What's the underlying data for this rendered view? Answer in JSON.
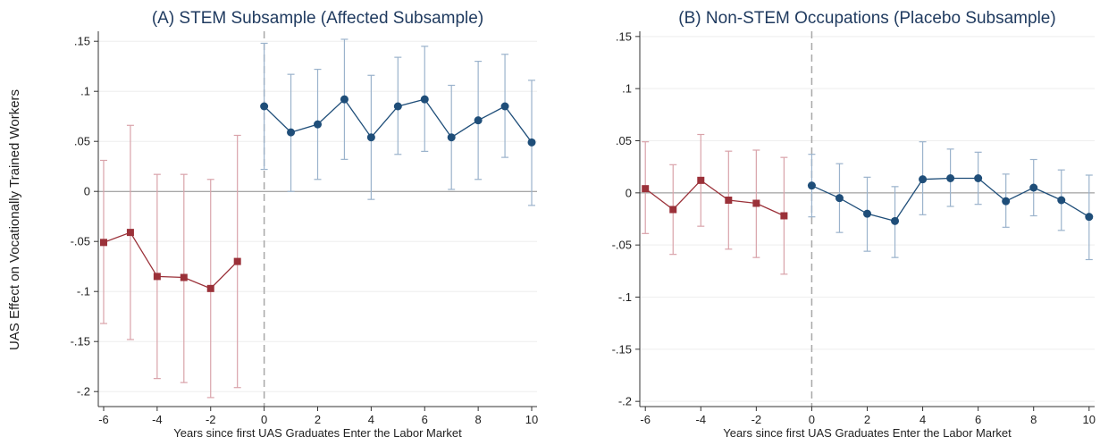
{
  "figure": {
    "ylabel": "UAS Effect on Vocationally Trained Workers"
  },
  "chart_data": [
    {
      "type": "scatter",
      "title": "(A) STEM Subsample (Affected Subsample)",
      "xlabel": "Years since first UAS Graduates Enter the Labor Market",
      "ylabel": "UAS Effect on Vocationally Trained Workers",
      "xlim": [
        -6.2,
        10.2
      ],
      "ylim": [
        -0.215,
        0.16
      ],
      "xticks": [
        -6,
        -4,
        -2,
        0,
        2,
        4,
        6,
        8,
        10
      ],
      "xtick_labels": [
        "-6",
        "-4",
        "-2",
        "0",
        "2",
        "4",
        "6",
        "8",
        "10"
      ],
      "yticks": [
        0.15,
        0.1,
        0.05,
        0,
        -0.05,
        -0.1,
        -0.15,
        -0.2
      ],
      "ytick_labels": [
        ".15",
        ".1",
        ".05",
        "0",
        "-.05",
        "-.1",
        "-.15",
        "-.2"
      ],
      "grid": true,
      "zero_line": true,
      "vline_x": 0,
      "series": [
        {
          "color": "#9B3139",
          "ci_color": "#D9A3AA",
          "marker": "square",
          "x": [
            -6,
            -5,
            -4,
            -3,
            -2,
            -1
          ],
          "y": [
            -0.051,
            -0.041,
            -0.085,
            -0.086,
            -0.097,
            -0.07
          ],
          "lo": [
            -0.132,
            -0.148,
            -0.187,
            -0.191,
            -0.206,
            -0.196
          ],
          "hi": [
            0.031,
            0.066,
            0.017,
            0.017,
            0.012,
            0.056
          ]
        },
        {
          "color": "#1F4E79",
          "ci_color": "#9BB3CC",
          "marker": "circle",
          "x": [
            0,
            1,
            2,
            3,
            4,
            5,
            6,
            7,
            8,
            9,
            10
          ],
          "y": [
            0.085,
            0.059,
            0.067,
            0.092,
            0.054,
            0.085,
            0.092,
            0.054,
            0.071,
            0.085,
            0.049
          ],
          "lo": [
            0.022,
            0.0,
            0.012,
            0.032,
            -0.008,
            0.037,
            0.04,
            0.002,
            0.012,
            0.034,
            -0.014
          ],
          "hi": [
            0.148,
            0.117,
            0.122,
            0.152,
            0.116,
            0.134,
            0.145,
            0.106,
            0.13,
            0.137,
            0.111
          ]
        }
      ]
    },
    {
      "type": "scatter",
      "title": "(B) Non-STEM Occupations (Placebo Subsample)",
      "xlabel": "Years since first UAS Graduates Enter the Labor Market",
      "ylabel": "",
      "xlim": [
        -6.2,
        10.2
      ],
      "ylim": [
        -0.205,
        0.155
      ],
      "xticks": [
        -6,
        -4,
        -2,
        0,
        2,
        4,
        6,
        8,
        10
      ],
      "xtick_labels": [
        "-6",
        "-4",
        "-2",
        "0",
        "2",
        "4",
        "6",
        "8",
        "10"
      ],
      "yticks": [
        0.15,
        0.1,
        0.05,
        0,
        -0.05,
        -0.1,
        -0.15,
        -0.2
      ],
      "ytick_labels": [
        ".15",
        ".1",
        ".05",
        "0",
        "-.05",
        "-.1",
        "-.15",
        "-.2"
      ],
      "grid": true,
      "zero_line": true,
      "vline_x": 0,
      "series": [
        {
          "color": "#9B3139",
          "ci_color": "#D9A3AA",
          "marker": "square",
          "x": [
            -6,
            -5,
            -4,
            -3,
            -2,
            -1
          ],
          "y": [
            0.004,
            -0.016,
            0.012,
            -0.007,
            -0.01,
            -0.022
          ],
          "lo": [
            -0.039,
            -0.059,
            -0.032,
            -0.054,
            -0.062,
            -0.078
          ],
          "hi": [
            0.049,
            0.027,
            0.056,
            0.04,
            0.041,
            0.034
          ]
        },
        {
          "color": "#1F4E79",
          "ci_color": "#9BB3CC",
          "marker": "circle",
          "x": [
            0,
            1,
            2,
            3,
            4,
            5,
            6,
            7,
            8,
            9,
            10
          ],
          "y": [
            0.007,
            -0.005,
            -0.02,
            -0.027,
            0.013,
            0.014,
            0.014,
            -0.008,
            0.005,
            -0.007,
            -0.023
          ],
          "lo": [
            -0.023,
            -0.038,
            -0.056,
            -0.062,
            -0.021,
            -0.013,
            -0.011,
            -0.033,
            -0.022,
            -0.036,
            -0.064
          ],
          "hi": [
            0.037,
            0.028,
            0.015,
            0.006,
            0.049,
            0.042,
            0.039,
            0.018,
            0.032,
            0.022,
            0.017
          ]
        }
      ]
    }
  ]
}
